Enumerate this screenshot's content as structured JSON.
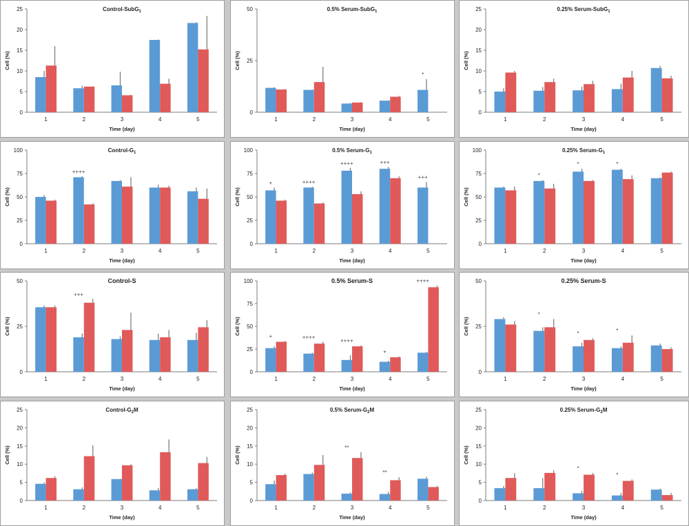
{
  "colors": {
    "blue": "#5b9bd5",
    "red": "#e05a5a",
    "axis": "#7a7a7a",
    "error": "#7f7f7f"
  },
  "chart_data": [
    {
      "type": "bar",
      "title": "Control-SubG",
      "title_sub": "1",
      "xlabel": "Time (day)",
      "ylabel": "Cell (%)",
      "categories": [
        "1",
        "2",
        "3",
        "4",
        "5"
      ],
      "ylim": [
        0,
        25
      ],
      "yticks": [
        0,
        5,
        10,
        15,
        20,
        25
      ],
      "series": [
        {
          "values": [
            8.5,
            5.8,
            6.5,
            17.5,
            21.6
          ],
          "errors": [
            1.5,
            0.6,
            3.3,
            0.1,
            0.2
          ]
        },
        {
          "values": [
            11.3,
            6.2,
            4.1,
            6.9,
            15.2
          ],
          "errors": [
            4.7,
            0.1,
            0.1,
            1.2,
            8.1
          ]
        }
      ],
      "annotations": []
    },
    {
      "type": "bar",
      "title": "0.5% Serum-SubG",
      "title_sub": "1",
      "xlabel": "Time (day)",
      "ylabel": "Cell (%)",
      "categories": [
        "1",
        "2",
        "3",
        "4",
        "5"
      ],
      "ylim": [
        0,
        50
      ],
      "yticks": [
        0,
        25,
        50
      ],
      "series": [
        {
          "values": [
            11.8,
            10.8,
            4.2,
            5.6,
            10.8
          ],
          "errors": [
            0.3,
            0.2,
            0.3,
            0.2,
            5.2
          ]
        },
        {
          "values": [
            11.0,
            14.6,
            4.7,
            7.5,
            0
          ],
          "errors": [
            0.2,
            7.4,
            0.2,
            0.4,
            0
          ]
        }
      ],
      "annotations": [
        {
          "index": 4,
          "label": "*"
        }
      ]
    },
    {
      "type": "bar",
      "title": "0.25% Serum-SubG",
      "title_sub": "1",
      "xlabel": "Time (day)",
      "ylabel": "Cell (%)",
      "categories": [
        "1",
        "2",
        "3",
        "4",
        "5"
      ],
      "ylim": [
        0,
        25
      ],
      "yticks": [
        0,
        5,
        10,
        15,
        20,
        25
      ],
      "series": [
        {
          "values": [
            5.0,
            5.2,
            5.3,
            5.6,
            10.7
          ],
          "errors": [
            0.8,
            0.9,
            0.9,
            1.3,
            0.5
          ]
        },
        {
          "values": [
            9.6,
            7.3,
            6.8,
            8.4,
            8.2
          ],
          "errors": [
            0.4,
            0.8,
            0.8,
            1.6,
            0.6
          ]
        }
      ],
      "annotations": []
    },
    {
      "type": "bar",
      "title": "Control-G",
      "title_sub": "1",
      "xlabel": "Time (day)",
      "ylabel": "Cell (%)",
      "categories": [
        "1",
        "2",
        "3",
        "4",
        "5"
      ],
      "ylim": [
        0,
        100
      ],
      "yticks": [
        0,
        25,
        50,
        75,
        100
      ],
      "series": [
        {
          "values": [
            50,
            71,
            67,
            60,
            56
          ],
          "errors": [
            2,
            1,
            1,
            3,
            4
          ]
        },
        {
          "values": [
            46,
            42,
            61,
            60,
            48
          ],
          "errors": [
            1,
            1,
            10,
            2,
            11
          ]
        }
      ],
      "annotations": [
        {
          "index": 1,
          "label": "++++"
        }
      ]
    },
    {
      "type": "bar",
      "title": "0.5% Serum-G",
      "title_sub": "1",
      "xlabel": "Time (day)",
      "ylabel": "Cell (%)",
      "categories": [
        "1",
        "2",
        "3",
        "4",
        "5"
      ],
      "ylim": [
        0,
        100
      ],
      "yticks": [
        0,
        25,
        50,
        75,
        100
      ],
      "series": [
        {
          "values": [
            57,
            60,
            78,
            80,
            60
          ],
          "errors": [
            3,
            1,
            3,
            2,
            6
          ]
        },
        {
          "values": [
            46,
            43,
            53,
            70,
            0
          ],
          "errors": [
            1,
            1,
            3,
            2,
            0
          ]
        }
      ],
      "annotations": [
        {
          "index": 0,
          "label": "+"
        },
        {
          "index": 1,
          "label": "++++"
        },
        {
          "index": 2,
          "label": "++++"
        },
        {
          "index": 3,
          "label": "+++"
        },
        {
          "index": 4,
          "label": "+++"
        }
      ]
    },
    {
      "type": "bar",
      "title": "0.25% Serum-G",
      "title_sub": "1",
      "xlabel": "Time (day)",
      "ylabel": "Cell (%)",
      "categories": [
        "1",
        "2",
        "3",
        "4",
        "5"
      ],
      "ylim": [
        0,
        100
      ],
      "yticks": [
        0,
        25,
        50,
        75,
        100
      ],
      "series": [
        {
          "values": [
            60,
            67,
            77,
            79,
            70
          ],
          "errors": [
            1,
            1,
            3,
            1,
            1
          ]
        },
        {
          "values": [
            57,
            59,
            67,
            69,
            76
          ],
          "errors": [
            4,
            5,
            1,
            4,
            1
          ]
        }
      ],
      "annotations": [
        {
          "index": 1,
          "label": "*"
        },
        {
          "index": 2,
          "label": "*"
        },
        {
          "index": 3,
          "label": "*"
        }
      ]
    },
    {
      "type": "bar",
      "title": "Control-S",
      "title_sub": "",
      "xlabel": "Time (day)",
      "ylabel": "Cell (%)",
      "categories": [
        "1",
        "2",
        "3",
        "4",
        "5"
      ],
      "ylim": [
        0,
        50
      ],
      "yticks": [
        0,
        25,
        50
      ],
      "series": [
        {
          "values": [
            35.5,
            19,
            18,
            17.5,
            17.5
          ],
          "errors": [
            1,
            2,
            1.5,
            3.5,
            4
          ]
        },
        {
          "values": [
            35.5,
            38,
            23,
            19,
            24.5
          ],
          "errors": [
            1,
            2,
            9.5,
            4,
            4
          ]
        }
      ],
      "annotations": [
        {
          "index": 1,
          "label": "+++"
        }
      ]
    },
    {
      "type": "bar",
      "title": "0.5% Serum-S",
      "title_sub": "",
      "xlabel": "Time (day)",
      "ylabel": "Cell (%)",
      "categories": [
        "1",
        "2",
        "3",
        "4",
        "5"
      ],
      "ylim": [
        0,
        100
      ],
      "yticks": [
        0,
        25,
        50,
        75,
        100
      ],
      "series": [
        {
          "values": [
            26,
            20,
            13,
            11,
            21
          ],
          "errors": [
            2,
            1,
            5,
            1,
            1
          ]
        },
        {
          "values": [
            33,
            31,
            28,
            16,
            93
          ],
          "errors": [
            1,
            2,
            1,
            1,
            2
          ]
        }
      ],
      "annotations": [
        {
          "index": 0,
          "label": "+"
        },
        {
          "index": 1,
          "label": "++++"
        },
        {
          "index": 2,
          "label": "++++"
        },
        {
          "index": 3,
          "label": "+"
        },
        {
          "index": 4,
          "label": "++++"
        }
      ]
    },
    {
      "type": "bar",
      "title": "0.25% Serum-S",
      "title_sub": "",
      "xlabel": "Time (day)",
      "ylabel": "Cell (%)",
      "categories": [
        "1",
        "2",
        "3",
        "4",
        "5"
      ],
      "ylim": [
        0,
        50
      ],
      "yticks": [
        0,
        25,
        50
      ],
      "series": [
        {
          "values": [
            29,
            22.5,
            14,
            13,
            14.5
          ],
          "errors": [
            1,
            2,
            2,
            1,
            1
          ]
        },
        {
          "values": [
            26,
            24.5,
            17.5,
            16,
            12.5
          ],
          "errors": [
            2,
            4.5,
            1,
            4,
            1
          ]
        }
      ],
      "annotations": [
        {
          "index": 1,
          "label": "*"
        },
        {
          "index": 2,
          "label": "*"
        },
        {
          "index": 3,
          "label": "*"
        }
      ]
    },
    {
      "type": "bar",
      "title": "Control-G",
      "title_sub": "2",
      "title_suffix": "M",
      "xlabel": "Time (day)",
      "ylabel": "Cell (%)",
      "categories": [
        "1",
        "2",
        "3",
        "4",
        "5"
      ],
      "ylim": [
        0,
        25
      ],
      "yticks": [
        0,
        5,
        10,
        15,
        20,
        25
      ],
      "series": [
        {
          "values": [
            4.6,
            3.1,
            5.9,
            2.8,
            3.1
          ],
          "errors": [
            0.4,
            0.5,
            0.1,
            0.6,
            0.3
          ]
        },
        {
          "values": [
            6.2,
            12.2,
            9.7,
            13.3,
            10.3
          ],
          "errors": [
            0.5,
            3.0,
            0.3,
            3.5,
            1.7
          ]
        }
      ],
      "annotations": []
    },
    {
      "type": "bar",
      "title": "0.5% Serum-G",
      "title_sub": "2",
      "title_suffix": "M",
      "xlabel": "Time (day)",
      "ylabel": "Cell (%)",
      "categories": [
        "1",
        "2",
        "3",
        "4",
        "5"
      ],
      "ylim": [
        0,
        25
      ],
      "yticks": [
        0,
        5,
        10,
        15,
        20,
        25
      ],
      "series": [
        {
          "values": [
            4.5,
            7.3,
            1.9,
            1.8,
            6.0
          ],
          "errors": [
            1.0,
            0.4,
            0.3,
            0.6,
            0.5
          ]
        },
        {
          "values": [
            7.0,
            9.8,
            11.7,
            5.6,
            3.7
          ],
          "errors": [
            0.4,
            2.7,
            1.6,
            0.8,
            0.3
          ]
        }
      ],
      "annotations": [
        {
          "index": 2,
          "label": "**"
        },
        {
          "index": 3,
          "label": "**"
        }
      ]
    },
    {
      "type": "bar",
      "title": "0.25% Serum-G",
      "title_sub": "2",
      "title_suffix": "M",
      "xlabel": "Time (day)",
      "ylabel": "Cell (%)",
      "categories": [
        "1",
        "2",
        "3",
        "4",
        "5"
      ],
      "ylim": [
        0,
        25
      ],
      "yticks": [
        0,
        5,
        10,
        15,
        20,
        25
      ],
      "series": [
        {
          "values": [
            3.4,
            3.4,
            2.0,
            1.4,
            3.0
          ],
          "errors": [
            0.6,
            2.8,
            0.7,
            0.7,
            0.3
          ]
        },
        {
          "values": [
            6.2,
            7.6,
            7.1,
            5.4,
            1.5
          ],
          "errors": [
            1.3,
            0.7,
            0.5,
            0.4,
            0.6
          ]
        }
      ],
      "annotations": [
        {
          "index": 2,
          "label": "*"
        },
        {
          "index": 3,
          "label": "*"
        }
      ]
    }
  ]
}
